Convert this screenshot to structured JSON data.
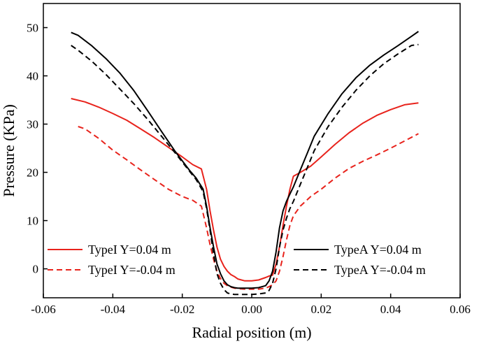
{
  "chart_data": {
    "type": "line",
    "title": "",
    "xlabel": "Radial position (m)",
    "ylabel": "Pressure (KPa)",
    "xlim": [
      -0.06,
      0.06
    ],
    "ylim": [
      -6,
      55
    ],
    "xticks": [
      -0.06,
      -0.04,
      -0.02,
      0.0,
      0.02,
      0.04,
      0.06
    ],
    "xtick_labels": [
      "-0.06",
      "-0.04",
      "-0.02",
      "0.00",
      "0.02",
      "0.04",
      "0.06"
    ],
    "yticks": [
      0,
      10,
      20,
      30,
      40,
      50
    ],
    "ytick_labels": [
      "0",
      "10",
      "20",
      "30",
      "40",
      "50"
    ],
    "grid": false,
    "series": [
      {
        "name": "TypeI  Y=0.04 m",
        "color": "#e8231c",
        "dash": "solid",
        "legend_position": "bottom-left-top",
        "x": [
          -0.052,
          -0.048,
          -0.044,
          -0.04,
          -0.036,
          -0.032,
          -0.028,
          -0.024,
          -0.02,
          -0.017,
          -0.0145,
          -0.013,
          -0.012,
          -0.011,
          -0.01,
          -0.009,
          -0.008,
          -0.007,
          -0.006,
          -0.005,
          -0.004,
          -0.002,
          0.0,
          0.002,
          0.004,
          0.005,
          0.006,
          0.007,
          0.008,
          0.009,
          0.01,
          0.011,
          0.012,
          0.014,
          0.017,
          0.02,
          0.024,
          0.028,
          0.032,
          0.036,
          0.04,
          0.044,
          0.048
        ],
        "y": [
          35.3,
          34.6,
          33.5,
          32.2,
          30.8,
          29.0,
          27.2,
          25.2,
          23.2,
          21.6,
          20.7,
          16.5,
          12.0,
          8.0,
          4.5,
          2.0,
          0.5,
          -0.5,
          -1.2,
          -1.6,
          -2.1,
          -2.5,
          -2.5,
          -2.3,
          -1.8,
          -1.5,
          -1.3,
          1.0,
          4.5,
          9.0,
          13.0,
          16.5,
          19.2,
          20.0,
          21.3,
          23.2,
          25.8,
          28.2,
          30.2,
          31.8,
          33.0,
          34.0,
          34.4
        ]
      },
      {
        "name": "TypeI  Y=-0.04 m",
        "color": "#e8231c",
        "dash": "dashed",
        "legend_position": "bottom-left-bottom",
        "x": [
          -0.05,
          -0.048,
          -0.044,
          -0.04,
          -0.036,
          -0.032,
          -0.028,
          -0.024,
          -0.02,
          -0.017,
          -0.0145,
          -0.013,
          -0.012,
          -0.011,
          -0.01,
          -0.009,
          -0.008,
          -0.007,
          -0.006,
          -0.005,
          -0.004,
          -0.002,
          0.0,
          0.002,
          0.004,
          0.005,
          0.006,
          0.007,
          0.008,
          0.009,
          0.01,
          0.011,
          0.012,
          0.014,
          0.017,
          0.02,
          0.024,
          0.028,
          0.032,
          0.036,
          0.04,
          0.044,
          0.048
        ],
        "y": [
          29.5,
          29.0,
          27.0,
          24.6,
          22.6,
          20.5,
          18.5,
          16.5,
          15.0,
          14.2,
          13.0,
          8.5,
          5.0,
          2.0,
          -0.5,
          -2.0,
          -3.0,
          -3.5,
          -3.8,
          -4.0,
          -4.1,
          -4.2,
          -4.2,
          -4.2,
          -4.0,
          -3.7,
          -3.3,
          -2.5,
          -0.5,
          2.5,
          6.0,
          9.0,
          11.0,
          13.0,
          15.0,
          16.5,
          18.8,
          20.8,
          22.3,
          23.6,
          25.0,
          26.5,
          28.0
        ]
      },
      {
        "name": "TypeA Y=0.04 m",
        "color": "#000000",
        "dash": "solid",
        "legend_position": "bottom-right-top",
        "x": [
          -0.052,
          -0.05,
          -0.046,
          -0.042,
          -0.038,
          -0.034,
          -0.03,
          -0.026,
          -0.022,
          -0.018,
          -0.016,
          -0.014,
          -0.013,
          -0.012,
          -0.011,
          -0.01,
          -0.009,
          -0.008,
          -0.007,
          -0.006,
          -0.005,
          -0.004,
          -0.002,
          0.0,
          0.002,
          0.004,
          0.005,
          0.006,
          0.007,
          0.008,
          0.009,
          0.01,
          0.011,
          0.012,
          0.014,
          0.016,
          0.018,
          0.022,
          0.026,
          0.03,
          0.034,
          0.038,
          0.042,
          0.046,
          0.048
        ],
        "y": [
          49.0,
          48.4,
          46.2,
          43.6,
          40.6,
          37.0,
          32.8,
          28.5,
          24.3,
          20.5,
          18.8,
          16.5,
          13.0,
          8.5,
          4.5,
          1.0,
          -1.0,
          -2.5,
          -3.3,
          -3.7,
          -3.9,
          -4.0,
          -4.0,
          -4.0,
          -3.9,
          -3.5,
          -2.5,
          -0.5,
          3.5,
          8.5,
          12.0,
          14.0,
          15.5,
          17.0,
          20.5,
          24.0,
          27.5,
          32.2,
          36.3,
          39.6,
          42.2,
          44.3,
          46.2,
          48.2,
          49.2
        ]
      },
      {
        "name": "TypeA Y=-0.04 m",
        "color": "#000000",
        "dash": "dashed",
        "legend_position": "bottom-right-bottom",
        "x": [
          -0.052,
          -0.05,
          -0.046,
          -0.042,
          -0.038,
          -0.034,
          -0.03,
          -0.026,
          -0.022,
          -0.018,
          -0.016,
          -0.014,
          -0.013,
          -0.012,
          -0.011,
          -0.01,
          -0.009,
          -0.008,
          -0.007,
          -0.006,
          -0.005,
          -0.004,
          -0.002,
          0.0,
          0.002,
          0.004,
          0.005,
          0.006,
          0.007,
          0.008,
          0.009,
          0.01,
          0.011,
          0.012,
          0.014,
          0.016,
          0.018,
          0.022,
          0.026,
          0.03,
          0.034,
          0.038,
          0.042,
          0.046,
          0.048
        ],
        "y": [
          46.3,
          45.3,
          43.0,
          40.3,
          37.3,
          34.3,
          31.0,
          27.5,
          24.0,
          20.3,
          18.5,
          16.0,
          12.5,
          8.0,
          3.0,
          -1.0,
          -3.0,
          -4.3,
          -5.0,
          -5.2,
          -5.3,
          -5.3,
          -5.3,
          -5.3,
          -5.2,
          -5.0,
          -4.5,
          -3.0,
          0.0,
          4.5,
          8.0,
          10.5,
          12.5,
          14.0,
          17.5,
          21.0,
          24.5,
          29.5,
          33.5,
          37.0,
          40.0,
          42.5,
          44.5,
          46.3,
          46.5
        ]
      }
    ]
  }
}
